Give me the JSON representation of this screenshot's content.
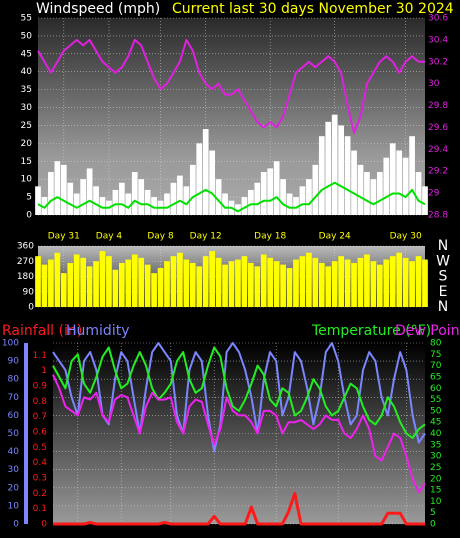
{
  "chart_data": [
    {
      "type": "line",
      "title": "Current last 30 days November 30 2024",
      "y_label": "Windspeed (mph)",
      "x": [
        0,
        0.5,
        1,
        1.5,
        2,
        2.5,
        3,
        3.5,
        4,
        4.5,
        5,
        5.5,
        6,
        6.5,
        7,
        7.5,
        8,
        8.5,
        9,
        9.5,
        10,
        10.5,
        11,
        11.5,
        12,
        12.5,
        13,
        13.5,
        14,
        14.5,
        15,
        15.5,
        16,
        16.5,
        17,
        17.5,
        18,
        18.5,
        19,
        19.5,
        20,
        20.5,
        21,
        21.5,
        22,
        22.5,
        23,
        23.5,
        24,
        24.5,
        25,
        25.5,
        26,
        26.5,
        27,
        27.5,
        28,
        28.5,
        29,
        29.5,
        30
      ],
      "xlim": [
        0,
        30
      ],
      "xticks": [
        {
          "value": 2,
          "label": "Day 31"
        },
        {
          "value": 5.5,
          "label": "Day 4"
        },
        {
          "value": 9.5,
          "label": "Day 8"
        },
        {
          "value": 13,
          "label": "Day 12"
        },
        {
          "value": 18,
          "label": "Day 18"
        },
        {
          "value": 23,
          "label": "Day 24"
        },
        {
          "value": 28.5,
          "label": "Day 30"
        }
      ],
      "ylim": [
        0,
        55
      ],
      "yticks": [
        0,
        5,
        10,
        15,
        20,
        25,
        30,
        35,
        40,
        45,
        50,
        55
      ],
      "y2lim": [
        28.8,
        30.6
      ],
      "y2ticks": [
        28.8,
        29,
        29.2,
        29.4,
        29.6,
        29.8,
        30,
        30.2,
        30.4,
        30.6
      ],
      "grid": true,
      "series": [
        {
          "type": "bar",
          "color": "#ffffff",
          "values": [
            8,
            5,
            12,
            15,
            14,
            9,
            6,
            10,
            13,
            8,
            5,
            4,
            7,
            9,
            6,
            12,
            10,
            7,
            5,
            4,
            6,
            9,
            11,
            8,
            14,
            20,
            24,
            18,
            10,
            6,
            4,
            3,
            5,
            7,
            9,
            12,
            13,
            15,
            10,
            6,
            5,
            8,
            10,
            14,
            22,
            26,
            28,
            25,
            22,
            18,
            14,
            12,
            10,
            12,
            16,
            20,
            18,
            16,
            22,
            12,
            8
          ]
        },
        {
          "type": "line",
          "color": "#00e000",
          "values": [
            3,
            2,
            4,
            5,
            4,
            3,
            2,
            3,
            4,
            3,
            2,
            2,
            3,
            3,
            2,
            4,
            3,
            3,
            2,
            2,
            2,
            3,
            4,
            3,
            5,
            6,
            7,
            6,
            4,
            2,
            2,
            1,
            2,
            3,
            3,
            4,
            4,
            5,
            3,
            2,
            2,
            3,
            3,
            5,
            7,
            8,
            9,
            8,
            7,
            6,
            5,
            4,
            3,
            4,
            5,
            6,
            6,
            5,
            7,
            4,
            3
          ]
        },
        {
          "type": "line",
          "color": "#e020e0",
          "axis": "y2",
          "values": [
            30.3,
            30.2,
            30.1,
            30.2,
            30.3,
            30.35,
            30.4,
            30.35,
            30.4,
            30.3,
            30.2,
            30.15,
            30.1,
            30.15,
            30.25,
            30.4,
            30.35,
            30.2,
            30.05,
            29.95,
            30.0,
            30.1,
            30.2,
            30.4,
            30.3,
            30.1,
            30.0,
            29.95,
            30.0,
            29.9,
            29.9,
            29.95,
            29.85,
            29.75,
            29.65,
            29.6,
            29.65,
            29.6,
            29.7,
            29.9,
            30.1,
            30.15,
            30.2,
            30.15,
            30.2,
            30.25,
            30.2,
            30.1,
            29.8,
            29.55,
            29.7,
            30.0,
            30.1,
            30.2,
            30.25,
            30.2,
            30.1,
            30.2,
            30.25,
            30.2,
            30.2
          ]
        }
      ]
    },
    {
      "type": "bar",
      "x": [
        0,
        0.5,
        1,
        1.5,
        2,
        2.5,
        3,
        3.5,
        4,
        4.5,
        5,
        5.5,
        6,
        6.5,
        7,
        7.5,
        8,
        8.5,
        9,
        9.5,
        10,
        10.5,
        11,
        11.5,
        12,
        12.5,
        13,
        13.5,
        14,
        14.5,
        15,
        15.5,
        16,
        16.5,
        17,
        17.5,
        18,
        18.5,
        19,
        19.5,
        20,
        20.5,
        21,
        21.5,
        22,
        22.5,
        23,
        23.5,
        24,
        24.5,
        25,
        25.5,
        26,
        26.5,
        27,
        27.5,
        28,
        28.5,
        29,
        29.5,
        30
      ],
      "xlim": [
        0,
        30
      ],
      "ylim": [
        0,
        360
      ],
      "yticks": [
        0,
        90,
        180,
        270,
        360
      ],
      "y2lim": [
        0,
        360
      ],
      "y2ticks": [
        {
          "value": 0,
          "label": "N"
        },
        {
          "value": 90,
          "label": "E"
        },
        {
          "value": 180,
          "label": "S"
        },
        {
          "value": 270,
          "label": "W"
        },
        {
          "value": 360,
          "label": "N"
        }
      ],
      "grid": true,
      "series": [
        {
          "type": "bar",
          "color": "#ffff00",
          "values": [
            300,
            250,
            280,
            320,
            200,
            260,
            310,
            290,
            240,
            270,
            330,
            300,
            220,
            260,
            280,
            310,
            290,
            250,
            200,
            230,
            270,
            300,
            320,
            280,
            260,
            240,
            300,
            330,
            290,
            250,
            270,
            280,
            300,
            260,
            240,
            310,
            290,
            270,
            250,
            230,
            280,
            300,
            320,
            290,
            260,
            240,
            270,
            300,
            280,
            260,
            290,
            310,
            270,
            250,
            280,
            300,
            320,
            290,
            270,
            300,
            280
          ]
        }
      ]
    },
    {
      "type": "line",
      "x": [
        0,
        0.5,
        1,
        1.5,
        2,
        2.5,
        3,
        3.5,
        4,
        4.5,
        5,
        5.5,
        6,
        6.5,
        7,
        7.5,
        8,
        8.5,
        9,
        9.5,
        10,
        10.5,
        11,
        11.5,
        12,
        12.5,
        13,
        13.5,
        14,
        14.5,
        15,
        15.5,
        16,
        16.5,
        17,
        17.5,
        18,
        18.5,
        19,
        19.5,
        20,
        20.5,
        21,
        21.5,
        22,
        22.5,
        23,
        23.5,
        24,
        24.5,
        25,
        25.5,
        26,
        26.5,
        27,
        27.5,
        28,
        28.5,
        29,
        29.5,
        30
      ],
      "xlim": [
        0,
        30
      ],
      "ylim": [
        0,
        100
      ],
      "yticks": [
        0,
        10,
        20,
        30,
        40,
        50,
        60,
        70,
        80,
        90,
        100
      ],
      "y2lim": [
        0,
        80
      ],
      "y2ticks": [
        0,
        5,
        10,
        15,
        20,
        25,
        30,
        35,
        40,
        45,
        50,
        55,
        60,
        65,
        70,
        75,
        80
      ],
      "y3lim": [
        0,
        1.18
      ],
      "y3ticks": [
        0,
        0.1,
        0.2,
        0.3,
        0.4,
        0.5,
        0.6,
        0.7,
        0.8,
        0.9,
        1,
        1.1
      ],
      "grid": true,
      "series": [
        {
          "name": "Rainfall (in)",
          "color": "#ff1a1a",
          "axis": "y3",
          "values": [
            0,
            0,
            0,
            0,
            0,
            0,
            0.01,
            0,
            0,
            0,
            0,
            0,
            0,
            0,
            0,
            0,
            0,
            0,
            0.01,
            0,
            0,
            0,
            0,
            0,
            0,
            0,
            0.05,
            0,
            0,
            0,
            0,
            0,
            0.11,
            0,
            0,
            0,
            0,
            0,
            0.08,
            0.2,
            0,
            0,
            0,
            0,
            0,
            0,
            0,
            0,
            0,
            0,
            0,
            0,
            0,
            0,
            0.07,
            0.07,
            0.07,
            0,
            0,
            0,
            0
          ]
        },
        {
          "name": "Humidity",
          "color": "#7b86ff",
          "values": [
            95,
            90,
            85,
            70,
            60,
            90,
            95,
            85,
            60,
            55,
            80,
            95,
            90,
            70,
            50,
            75,
            95,
            100,
            95,
            90,
            60,
            50,
            85,
            95,
            90,
            60,
            40,
            55,
            95,
            100,
            95,
            85,
            70,
            50,
            80,
            95,
            90,
            60,
            70,
            95,
            90,
            75,
            55,
            70,
            95,
            100,
            90,
            70,
            55,
            60,
            85,
            95,
            90,
            70,
            60,
            80,
            95,
            85,
            60,
            45,
            50
          ]
        },
        {
          "name": "Temperature (°F)",
          "color": "#22ee22",
          "axis": "y2",
          "values": [
            70,
            65,
            60,
            72,
            75,
            62,
            58,
            65,
            74,
            78,
            68,
            60,
            62,
            70,
            76,
            70,
            60,
            55,
            58,
            62,
            72,
            76,
            64,
            58,
            60,
            70,
            78,
            74,
            60,
            52,
            50,
            55,
            62,
            70,
            66,
            55,
            52,
            60,
            58,
            48,
            50,
            56,
            64,
            60,
            52,
            48,
            50,
            56,
            62,
            60,
            52,
            46,
            44,
            48,
            56,
            52,
            45,
            40,
            38,
            42,
            44
          ]
        },
        {
          "name": "Dew Point",
          "color": "#ee22ee",
          "axis": "y2",
          "values": [
            66,
            60,
            52,
            50,
            48,
            56,
            55,
            58,
            48,
            45,
            55,
            57,
            56,
            48,
            40,
            52,
            58,
            55,
            55,
            56,
            45,
            40,
            52,
            55,
            54,
            44,
            35,
            42,
            56,
            50,
            48,
            48,
            45,
            40,
            50,
            50,
            48,
            40,
            45,
            45,
            46,
            44,
            42,
            44,
            48,
            46,
            46,
            40,
            38,
            42,
            48,
            42,
            30,
            28,
            34,
            40,
            38,
            30,
            20,
            14,
            18
          ]
        }
      ]
    }
  ]
}
